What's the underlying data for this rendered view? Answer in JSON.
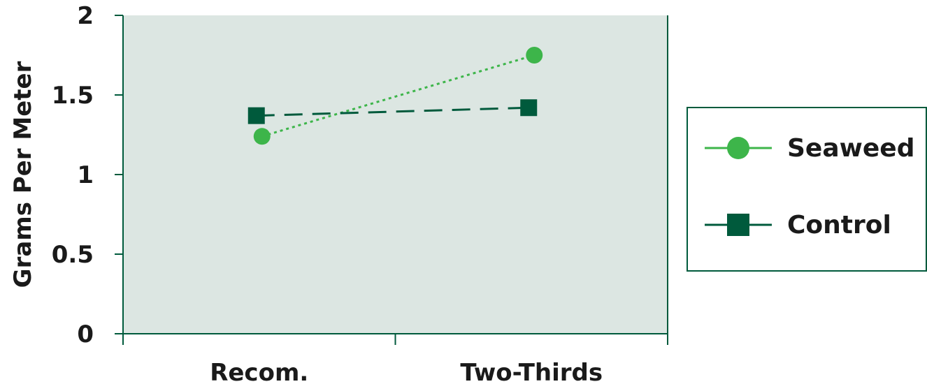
{
  "chart_data": {
    "type": "line",
    "categories": [
      "Recom.",
      "Two-Thirds"
    ],
    "series": [
      {
        "name": "Seaweed",
        "values": [
          1.24,
          1.75
        ],
        "marker": "circle",
        "line_style": "dotted",
        "color": "#3db54a"
      },
      {
        "name": "Control",
        "values": [
          1.37,
          1.42
        ],
        "marker": "square",
        "line_style": "dashed",
        "color": "#005a3c"
      }
    ],
    "title": "",
    "xlabel": "",
    "ylabel": "Grams Per Meter",
    "ylim": [
      0,
      2
    ],
    "yticks": [
      "0",
      "0.5",
      "1",
      "1.5",
      "2"
    ],
    "grid": false,
    "legend_position": "right",
    "colors": {
      "plot_background": "#dce6e2",
      "axis": "#005a3c",
      "legend_border": "#005a3c"
    }
  }
}
